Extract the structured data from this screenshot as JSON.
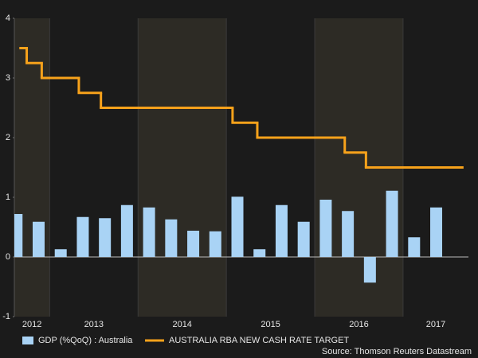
{
  "chart_data": {
    "type": "bar_line",
    "xlim": [
      2012.6,
      2017.74
    ],
    "xticks": [
      2012,
      2013,
      2014,
      2015,
      2016,
      2017
    ],
    "ylim": [
      -1,
      4
    ],
    "yticks": [
      -1,
      0,
      1,
      2,
      3,
      4
    ],
    "series": [
      {
        "name": "GDP (%QoQ) : Australia",
        "type": "bar",
        "color": "#a9d3f5",
        "x": [
          2012.625,
          2012.875,
          2013.125,
          2013.375,
          2013.625,
          2013.875,
          2014.125,
          2014.375,
          2014.625,
          2014.875,
          2015.125,
          2015.375,
          2015.625,
          2015.875,
          2016.125,
          2016.375,
          2016.625,
          2016.875,
          2017.125,
          2017.375
        ],
        "values": [
          0.72,
          0.59,
          0.13,
          0.67,
          0.65,
          0.87,
          0.83,
          0.63,
          0.44,
          0.43,
          1.01,
          0.13,
          0.87,
          0.59,
          0.96,
          0.77,
          -0.43,
          1.11,
          0.33,
          0.83
        ]
      },
      {
        "name": "AUSTRALIA RBA NEW CASH RATE TARGET",
        "type": "step",
        "color": "#f7a21b",
        "x": [
          2012.67,
          2012.74,
          2012.91,
          2013.33,
          2013.58,
          2015.07,
          2015.35,
          2016.34,
          2016.58,
          2017.67
        ],
        "values": [
          3.5,
          3.25,
          3.0,
          2.75,
          2.5,
          2.25,
          2.0,
          1.75,
          1.5,
          1.5
        ]
      }
    ],
    "source": "Source: Thomson Reuters Datastream"
  }
}
